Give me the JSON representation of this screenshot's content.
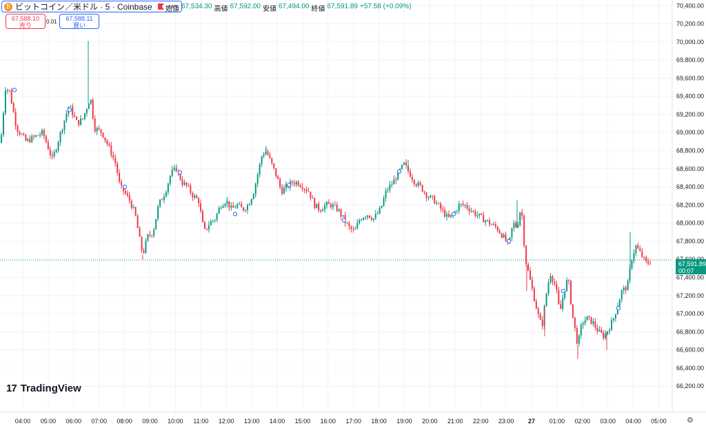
{
  "header": {
    "symbol": "ビットコイン／米ドル · 5 · Coinbase",
    "coin_icon": "₿",
    "ohlc": [
      {
        "label": "始値",
        "value": "67,534.30"
      },
      {
        "label": "高値",
        "value": "67,592.00"
      },
      {
        "label": "安値",
        "value": "67,494.00"
      },
      {
        "label": "終値",
        "value": "67,591.89"
      },
      {
        "label": "",
        "value": "+57.58 (+0.09%)"
      }
    ]
  },
  "trade": {
    "sell_price": "67,588.10",
    "sell_label": "売り",
    "spread": "0.01",
    "buy_price": "67,588.11",
    "buy_label": "買い"
  },
  "last_price": {
    "price": "67,591.89",
    "countdown": "00:07"
  },
  "branding": {
    "logo_mark": "17",
    "name": "TradingView"
  },
  "colors": {
    "up": "#089981",
    "down": "#f23645",
    "accent": "#2962ff"
  },
  "chart_data": {
    "type": "candlestick",
    "y_ticks": [
      "70,400.00",
      "70,200.00",
      "70,000.00",
      "69,800.00",
      "69,600.00",
      "69,400.00",
      "69,200.00",
      "69,000.00",
      "68,800.00",
      "68,600.00",
      "68,400.00",
      "68,200.00",
      "68,000.00",
      "67,800.00",
      "67,600.00",
      "67,400.00",
      "67,200.00",
      "67,000.00",
      "66,800.00",
      "66,600.00",
      "66,400.00",
      "66,200.00"
    ],
    "x_ticks": [
      "04:00",
      "05:00",
      "06:00",
      "07:00",
      "08:00",
      "09:00",
      "10:00",
      "11:00",
      "12:00",
      "13:00",
      "14:00",
      "15:00",
      "16:00",
      "17:00",
      "18:00",
      "19:00",
      "20:00",
      "21:00",
      "22:00",
      "23:00",
      "27",
      "01:00",
      "02:00",
      "03:00",
      "04:00",
      "05:00"
    ],
    "ylim": [
      66110,
      70440
    ],
    "last_price": 67591.89,
    "path": [
      [
        0,
        68800
      ],
      [
        8,
        69500
      ],
      [
        14,
        69450
      ],
      [
        24,
        69050
      ],
      [
        38,
        68900
      ],
      [
        50,
        68950
      ],
      [
        62,
        69000
      ],
      [
        76,
        68700
      ],
      [
        90,
        69050
      ],
      [
        100,
        69300
      ],
      [
        112,
        69100
      ],
      [
        120,
        69150
      ],
      [
        127,
        69300
      ],
      [
        131,
        69400
      ],
      [
        137,
        69050
      ],
      [
        148,
        69000
      ],
      [
        160,
        68800
      ],
      [
        168,
        68650
      ],
      [
        174,
        68400
      ],
      [
        180,
        68350
      ],
      [
        188,
        68250
      ],
      [
        196,
        68100
      ],
      [
        203,
        67800
      ],
      [
        207,
        67650
      ],
      [
        214,
        67850
      ],
      [
        222,
        67900
      ],
      [
        230,
        68200
      ],
      [
        240,
        68350
      ],
      [
        248,
        68550
      ],
      [
        256,
        68600
      ],
      [
        264,
        68450
      ],
      [
        272,
        68400
      ],
      [
        280,
        68300
      ],
      [
        288,
        68250
      ],
      [
        296,
        67900
      ],
      [
        304,
        68000
      ],
      [
        312,
        68050
      ],
      [
        320,
        68200
      ],
      [
        328,
        68250
      ],
      [
        336,
        68150
      ],
      [
        344,
        68200
      ],
      [
        352,
        68150
      ],
      [
        360,
        68200
      ],
      [
        368,
        68350
      ],
      [
        374,
        68550
      ],
      [
        380,
        68750
      ],
      [
        386,
        68800
      ],
      [
        394,
        68650
      ],
      [
        402,
        68500
      ],
      [
        408,
        68350
      ],
      [
        416,
        68400
      ],
      [
        424,
        68450
      ],
      [
        432,
        68450
      ],
      [
        440,
        68400
      ],
      [
        448,
        68350
      ],
      [
        456,
        68200
      ],
      [
        464,
        68150
      ],
      [
        472,
        68200
      ],
      [
        480,
        68200
      ],
      [
        490,
        68150
      ],
      [
        498,
        68050
      ],
      [
        506,
        67950
      ],
      [
        514,
        67900
      ],
      [
        522,
        68050
      ],
      [
        532,
        68100
      ],
      [
        542,
        68050
      ],
      [
        552,
        68150
      ],
      [
        560,
        68350
      ],
      [
        570,
        68450
      ],
      [
        578,
        68550
      ],
      [
        586,
        68650
      ],
      [
        594,
        68550
      ],
      [
        602,
        68450
      ],
      [
        610,
        68400
      ],
      [
        620,
        68300
      ],
      [
        630,
        68250
      ],
      [
        640,
        68150
      ],
      [
        650,
        68050
      ],
      [
        658,
        68100
      ],
      [
        666,
        68200
      ],
      [
        674,
        68200
      ],
      [
        682,
        68150
      ],
      [
        690,
        68100
      ],
      [
        700,
        68050
      ],
      [
        710,
        68000
      ],
      [
        720,
        67950
      ],
      [
        730,
        67850
      ],
      [
        738,
        67750
      ],
      [
        744,
        68000
      ],
      [
        750,
        67950
      ],
      [
        756,
        68200
      ],
      [
        762,
        67600
      ],
      [
        768,
        67400
      ],
      [
        774,
        67200
      ],
      [
        780,
        67000
      ],
      [
        786,
        66850
      ],
      [
        792,
        67200
      ],
      [
        798,
        67450
      ],
      [
        806,
        67300
      ],
      [
        812,
        67000
      ],
      [
        818,
        67250
      ],
      [
        824,
        67400
      ],
      [
        830,
        67000
      ],
      [
        838,
        66650
      ],
      [
        844,
        66900
      ],
      [
        852,
        66950
      ],
      [
        860,
        66900
      ],
      [
        868,
        66800
      ],
      [
        876,
        66750
      ],
      [
        884,
        66850
      ],
      [
        890,
        66950
      ],
      [
        896,
        67100
      ],
      [
        902,
        67250
      ],
      [
        910,
        67300
      ],
      [
        916,
        67600
      ],
      [
        922,
        67750
      ],
      [
        930,
        67650
      ],
      [
        938,
        67550
      ],
      [
        946,
        67592
      ]
    ],
    "spikes": [
      [
        128,
        70010
      ],
      [
        128,
        69700
      ],
      [
        207,
        67600
      ],
      [
        256,
        68650
      ],
      [
        386,
        68850
      ],
      [
        592,
        68700
      ],
      [
        750,
        68250
      ],
      [
        764,
        67250
      ],
      [
        790,
        66750
      ],
      [
        838,
        66500
      ],
      [
        880,
        66600
      ],
      [
        914,
        67900
      ]
    ],
    "markers": [
      [
        21,
        69470
      ],
      [
        101,
        69250
      ],
      [
        181,
        68400
      ],
      [
        261,
        68560
      ],
      [
        341,
        68100
      ],
      [
        419,
        68420
      ],
      [
        499,
        68030
      ],
      [
        579,
        68570
      ],
      [
        658,
        68100
      ],
      [
        738,
        67800
      ],
      [
        817,
        67250
      ],
      [
        897,
        67060
      ]
    ]
  }
}
